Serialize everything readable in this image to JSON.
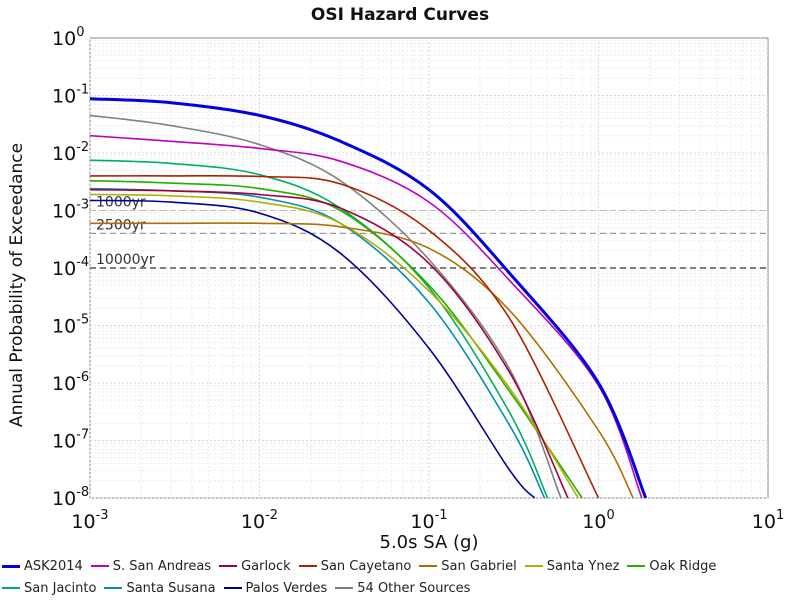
{
  "chart_data": {
    "type": "line",
    "title": "OSI Hazard Curves",
    "xlabel": "5.0s SA (g)",
    "ylabel": "Annual Probability of Exceedance",
    "x_scale": "log",
    "y_scale": "log",
    "xlim": [
      0.001,
      10
    ],
    "ylim": [
      1e-08,
      1
    ],
    "grid": true,
    "x_ticks": [
      {
        "base": "10",
        "exp": "-3"
      },
      {
        "base": "10",
        "exp": "-2"
      },
      {
        "base": "10",
        "exp": "-1"
      },
      {
        "base": "10",
        "exp": "0"
      },
      {
        "base": "10",
        "exp": "1"
      }
    ],
    "y_ticks": [
      {
        "base": "10",
        "exp": "0"
      },
      {
        "base": "10",
        "exp": "-1"
      },
      {
        "base": "10",
        "exp": "-2"
      },
      {
        "base": "10",
        "exp": "-3"
      },
      {
        "base": "10",
        "exp": "-4"
      },
      {
        "base": "10",
        "exp": "-5"
      },
      {
        "base": "10",
        "exp": "-6"
      },
      {
        "base": "10",
        "exp": "-7"
      },
      {
        "base": "10",
        "exp": "-8"
      }
    ],
    "reference_lines": [
      {
        "label": "1000yr",
        "y": 0.001
      },
      {
        "label": "2500yr",
        "y": 0.0004
      },
      {
        "label": "10000yr",
        "y": 0.0001
      }
    ],
    "legend_position": "bottom",
    "series": [
      {
        "name": "ASK2014",
        "color": "#0000e0",
        "points": [
          [
            0.001,
            0.088
          ],
          [
            0.003,
            0.075
          ],
          [
            0.01,
            0.045
          ],
          [
            0.03,
            0.016
          ],
          [
            0.1,
            0.0023
          ],
          [
            0.3,
            8e-05
          ],
          [
            1,
            1e-06
          ],
          [
            1.9,
            1e-08
          ]
        ]
      },
      {
        "name": "S. San Andreas",
        "color": "#c000c0",
        "points": [
          [
            0.001,
            0.02
          ],
          [
            0.003,
            0.016
          ],
          [
            0.01,
            0.012
          ],
          [
            0.03,
            0.0072
          ],
          [
            0.1,
            0.0014
          ],
          [
            0.3,
            6e-05
          ],
          [
            1,
            9e-07
          ],
          [
            1.8,
            1e-08
          ]
        ]
      },
      {
        "name": "Garlock",
        "color": "#a00040",
        "points": [
          [
            0.001,
            0.0023
          ],
          [
            0.003,
            0.0022
          ],
          [
            0.01,
            0.0019
          ],
          [
            0.03,
            0.0011
          ],
          [
            0.1,
            0.00012
          ],
          [
            0.3,
            1.5e-06
          ],
          [
            0.66,
            1e-08
          ]
        ]
      },
      {
        "name": "San Cayetano",
        "color": "#b02000",
        "points": [
          [
            0.001,
            0.004
          ],
          [
            0.003,
            0.004
          ],
          [
            0.01,
            0.0039
          ],
          [
            0.03,
            0.0029
          ],
          [
            0.1,
            0.00045
          ],
          [
            0.3,
            1.3e-05
          ],
          [
            1,
            1e-08
          ]
        ]
      },
      {
        "name": "San Gabriel",
        "color": "#b07000",
        "points": [
          [
            0.001,
            0.0006
          ],
          [
            0.003,
            0.0006
          ],
          [
            0.01,
            0.0006
          ],
          [
            0.03,
            0.00052
          ],
          [
            0.1,
            0.00022
          ],
          [
            0.3,
            1.8e-05
          ],
          [
            1,
            1.5e-07
          ],
          [
            1.6,
            1e-08
          ]
        ]
      },
      {
        "name": "Santa Ynez",
        "color": "#b0b000",
        "points": [
          [
            0.001,
            0.0019
          ],
          [
            0.003,
            0.0018
          ],
          [
            0.01,
            0.0014
          ],
          [
            0.03,
            0.0006
          ],
          [
            0.1,
            4e-05
          ],
          [
            0.3,
            8e-07
          ],
          [
            0.76,
            1e-08
          ]
        ]
      },
      {
        "name": "Oak Ridge",
        "color": "#20b000",
        "points": [
          [
            0.001,
            0.0033
          ],
          [
            0.003,
            0.003
          ],
          [
            0.01,
            0.0024
          ],
          [
            0.03,
            0.001
          ],
          [
            0.1,
            5e-05
          ],
          [
            0.3,
            7e-07
          ],
          [
            0.8,
            1e-08
          ]
        ]
      },
      {
        "name": "San Jacinto",
        "color": "#00b060",
        "points": [
          [
            0.001,
            0.0075
          ],
          [
            0.003,
            0.0066
          ],
          [
            0.01,
            0.0042
          ],
          [
            0.03,
            0.0011
          ],
          [
            0.1,
            4.5e-05
          ],
          [
            0.3,
            3e-07
          ],
          [
            0.5,
            1e-08
          ]
        ]
      },
      {
        "name": "Santa Susana",
        "color": "#0090b0",
        "points": [
          [
            0.001,
            0.0024
          ],
          [
            0.003,
            0.0022
          ],
          [
            0.01,
            0.0017
          ],
          [
            0.03,
            0.0006
          ],
          [
            0.1,
            2.5e-05
          ],
          [
            0.3,
            1.8e-07
          ],
          [
            0.48,
            1e-08
          ]
        ]
      },
      {
        "name": "Palos Verdes",
        "color": "#00009a",
        "points": [
          [
            0.001,
            0.0015
          ],
          [
            0.003,
            0.0014
          ],
          [
            0.01,
            0.0009
          ],
          [
            0.03,
            0.00018
          ],
          [
            0.1,
            4e-06
          ],
          [
            0.3,
            3e-08
          ],
          [
            0.42,
            1e-08
          ]
        ]
      },
      {
        "name": "54 Other Sources",
        "color": "#808080",
        "points": [
          [
            0.001,
            0.045
          ],
          [
            0.003,
            0.03
          ],
          [
            0.01,
            0.014
          ],
          [
            0.03,
            0.0033
          ],
          [
            0.1,
            0.00014
          ],
          [
            0.3,
            1.7e-06
          ],
          [
            0.6,
            1e-08
          ]
        ]
      }
    ]
  }
}
